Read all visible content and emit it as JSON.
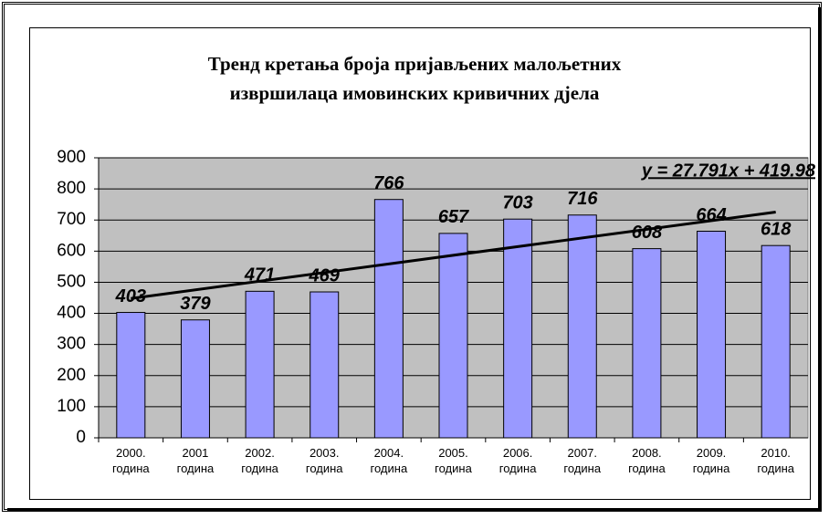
{
  "chart_data": {
    "type": "bar",
    "title": "Тренд кретања броја пријављених малољетних\nизвршилаца имовинских кривичних дјела",
    "categories": [
      "2000.\nгодина",
      "2001\nгодина",
      "2002.\nгодина",
      "2003.\nгодина",
      "2004.\nгодина",
      "2005.\nгодина",
      "2006.\nгодина",
      "2007.\nгодина",
      "2008.\nгодина",
      "2009.\nгодина",
      "2010.\nгодина"
    ],
    "values": [
      403,
      379,
      471,
      469,
      766,
      657,
      703,
      716,
      608,
      664,
      618
    ],
    "color": "#9999ff",
    "ylim": [
      0,
      900
    ],
    "yticks": [
      0,
      100,
      200,
      300,
      400,
      500,
      600,
      700,
      800,
      900
    ],
    "grid": true,
    "trendline": {
      "label": "y = 27.791x + 419.98",
      "slope": 27.791,
      "intercept": 419.98
    }
  }
}
